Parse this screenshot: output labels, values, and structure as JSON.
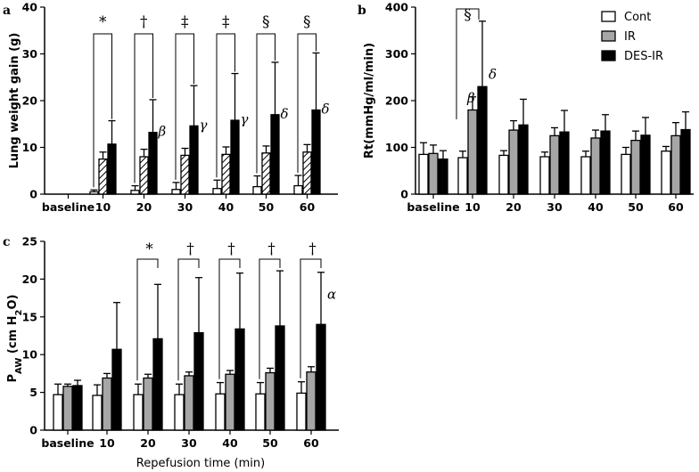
{
  "legend": {
    "series_names": [
      "Cont",
      "IR",
      "DES-IR"
    ]
  },
  "colors": {
    "Cont": "#ffffff",
    "IR": "#a6a6a6",
    "DES-IR": "#000000"
  },
  "chart_data": [
    {
      "panel": "a",
      "type": "bar",
      "ylabel": "Lung weight gain (g)",
      "xlabel": "",
      "ylim": [
        0,
        40
      ],
      "yticks": [
        0,
        10,
        20,
        30,
        40
      ],
      "categories": [
        "baseline",
        "10",
        "20",
        "30",
        "40",
        "50",
        "60"
      ],
      "series": [
        {
          "name": "Cont",
          "fill": "white",
          "values": [
            0,
            0.5,
            0.8,
            1.0,
            1.2,
            1.6,
            1.8
          ],
          "errors": [
            0,
            0.4,
            1.0,
            1.5,
            1.8,
            2.3,
            2.2
          ]
        },
        {
          "name": "IR",
          "fill": "hatch",
          "values": [
            0,
            7.5,
            8.0,
            8.3,
            8.5,
            8.8,
            9.0
          ],
          "errors": [
            0,
            1.5,
            1.6,
            1.5,
            1.6,
            1.5,
            1.6
          ]
        },
        {
          "name": "DES-IR",
          "fill": "black",
          "values": [
            0,
            10.7,
            13.2,
            14.6,
            15.8,
            17.0,
            18.0
          ],
          "errors": [
            0,
            5.0,
            7.0,
            8.6,
            10.0,
            11.2,
            12.2
          ]
        }
      ],
      "comparisons": [
        {
          "category": "10",
          "symbol": "*",
          "greek": ""
        },
        {
          "category": "20",
          "symbol": "†",
          "greek": "β"
        },
        {
          "category": "30",
          "symbol": "‡",
          "greek": "γ"
        },
        {
          "category": "40",
          "symbol": "‡",
          "greek": "γ"
        },
        {
          "category": "50",
          "symbol": "§",
          "greek": "δ"
        },
        {
          "category": "60",
          "symbol": "§",
          "greek": "δ"
        }
      ]
    },
    {
      "panel": "b",
      "type": "bar",
      "ylabel": "Rt(mmHg/ml/min)",
      "xlabel": "",
      "ylim": [
        0,
        400
      ],
      "yticks": [
        0,
        100,
        200,
        300,
        400
      ],
      "categories": [
        "baseline",
        "10",
        "20",
        "30",
        "40",
        "50",
        "60"
      ],
      "series": [
        {
          "name": "Cont",
          "fill": "white",
          "values": [
            85,
            78,
            83,
            80,
            80,
            85,
            92
          ],
          "errors": [
            25,
            14,
            10,
            10,
            12,
            15,
            10
          ]
        },
        {
          "name": "IR",
          "fill": "gray",
          "values": [
            87,
            180,
            137,
            125,
            120,
            115,
            125
          ],
          "errors": [
            18,
            28,
            20,
            17,
            17,
            20,
            28
          ]
        },
        {
          "name": "DES-IR",
          "fill": "black",
          "values": [
            75,
            230,
            148,
            133,
            135,
            126,
            138
          ],
          "errors": [
            18,
            140,
            55,
            46,
            35,
            38,
            38
          ]
        }
      ],
      "comparisons": [
        {
          "category": "10",
          "symbol": "§",
          "greek_ir": "β",
          "greek_desir": "δ"
        }
      ]
    },
    {
      "panel": "c",
      "type": "bar",
      "ylabel_main": "P",
      "ylabel_sub": "AW",
      "ylabel_rest": " (cm H",
      "ylabel_sub2": "2",
      "ylabel_end": "O)",
      "xlabel": "Repefusion time (min)",
      "ylim": [
        0,
        25
      ],
      "yticks": [
        0,
        5,
        10,
        15,
        20,
        25
      ],
      "categories": [
        "baseline",
        "10",
        "20",
        "30",
        "40",
        "50",
        "60"
      ],
      "series": [
        {
          "name": "Cont",
          "fill": "white",
          "values": [
            4.7,
            4.6,
            4.7,
            4.7,
            4.8,
            4.8,
            4.9
          ],
          "errors": [
            1.4,
            1.4,
            1.4,
            1.4,
            1.5,
            1.5,
            1.5
          ]
        },
        {
          "name": "IR",
          "fill": "gray",
          "values": [
            5.8,
            6.9,
            6.9,
            7.2,
            7.4,
            7.6,
            7.7
          ],
          "errors": [
            0.3,
            0.6,
            0.5,
            0.5,
            0.5,
            0.6,
            0.7
          ]
        },
        {
          "name": "DES-IR",
          "fill": "black",
          "values": [
            5.9,
            10.7,
            12.1,
            12.9,
            13.4,
            13.8,
            14.0
          ],
          "errors": [
            0.7,
            6.2,
            7.2,
            7.3,
            7.4,
            7.3,
            6.9
          ]
        }
      ],
      "comparisons": [
        {
          "category": "20",
          "symbol": "*"
        },
        {
          "category": "30",
          "symbol": "†"
        },
        {
          "category": "40",
          "symbol": "†"
        },
        {
          "category": "50",
          "symbol": "†"
        },
        {
          "category": "60",
          "symbol": "†"
        }
      ],
      "extra_greek": {
        "category": "60",
        "symbol": "α"
      }
    }
  ],
  "panel_tags": [
    "a",
    "b",
    "c"
  ]
}
